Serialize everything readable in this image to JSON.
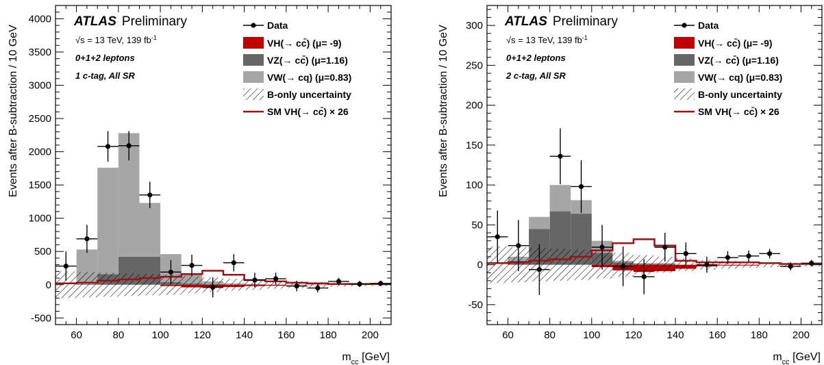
{
  "colors": {
    "vh_ccbar": "#c00000",
    "vz_ccbar": "#666666",
    "vw_cq": "#a6a6a6",
    "sm_line": "#a01010",
    "data": "#000000"
  },
  "legend": {
    "data": "Data",
    "vh": "VH(→ cc̄) (μ= -9)",
    "vz": "VZ(→ cc̄) (μ=1.16)",
    "vw": "VW(→ cq) (μ=0.83)",
    "unc": "B-only uncertainty",
    "sm": "SM VH(→ cc̄) × 26"
  },
  "labels": {
    "atlas": "ATLAS",
    "preliminary": "Preliminary",
    "energy": "√s = 13 TeV, 139 fb",
    "energy_sup": "-1",
    "leptons": "0+1+2 leptons"
  },
  "chart_data": [
    {
      "type": "bar",
      "category_label": "1 c-tag, All SR",
      "xlabel": "m",
      "xlabel_sub": "cc",
      "xlabel_unit": " [GeV]",
      "ylabel": "Events after B-subtraction / 10 GeV",
      "xlim": [
        50,
        210
      ],
      "ylim": [
        -600,
        4200
      ],
      "xticks": [
        60,
        80,
        100,
        120,
        140,
        160,
        180,
        200
      ],
      "yticks": [
        -500,
        0,
        500,
        1000,
        1500,
        2000,
        2500,
        3000,
        3500,
        4000
      ],
      "bin_edges": [
        50,
        60,
        70,
        80,
        90,
        100,
        110,
        120,
        130,
        140,
        150,
        160,
        170,
        180,
        190,
        200,
        210
      ],
      "series": [
        {
          "name": "VH(→ cc̄) (μ= -9)",
          "kind": "stack",
          "values": [
            0,
            0,
            0,
            0,
            0,
            -20,
            -40,
            -40,
            -35,
            -20,
            -15,
            -5,
            -5,
            0,
            0,
            0
          ]
        },
        {
          "name": "VZ(→ cc̄) (μ=1.16)",
          "kind": "stack",
          "values": [
            0,
            10,
            160,
            420,
            420,
            40,
            20,
            10,
            5,
            5,
            0,
            0,
            0,
            0,
            0,
            0
          ]
        },
        {
          "name": "VW(→ cq) (μ=0.83)",
          "kind": "stack",
          "values": [
            0,
            520,
            1600,
            1860,
            810,
            420,
            150,
            40,
            15,
            5,
            0,
            0,
            0,
            0,
            0,
            0
          ]
        },
        {
          "name": "SM VH(→ cc̄) × 26",
          "kind": "step",
          "values": [
            20,
            30,
            60,
            80,
            100,
            120,
            160,
            210,
            150,
            70,
            50,
            30,
            20,
            10,
            10,
            10
          ]
        }
      ],
      "uncertainty": [
        200,
        190,
        180,
        170,
        160,
        150,
        130,
        110,
        90,
        80,
        60,
        50,
        40,
        30,
        25,
        20
      ],
      "data": {
        "x": [
          55,
          65,
          75,
          85,
          95,
          105,
          115,
          125,
          135,
          145,
          155,
          165,
          175,
          185,
          195,
          205
        ],
        "y": [
          280,
          690,
          2080,
          2090,
          1350,
          190,
          290,
          -40,
          330,
          70,
          90,
          -20,
          -50,
          50,
          10,
          20
        ],
        "err": [
          220,
          210,
          230,
          220,
          200,
          180,
          160,
          150,
          130,
          110,
          90,
          80,
          65,
          55,
          45,
          40
        ]
      }
    },
    {
      "type": "bar",
      "category_label": "2 c-tag, All SR",
      "xlabel": "m",
      "xlabel_sub": "cc",
      "xlabel_unit": " [GeV]",
      "ylabel": "Events after B-subtraction / 10 GeV",
      "xlim": [
        50,
        210
      ],
      "ylim": [
        -75,
        325
      ],
      "xticks": [
        60,
        80,
        100,
        120,
        140,
        160,
        180,
        200
      ],
      "yticks": [
        -50,
        0,
        50,
        100,
        150,
        200,
        250,
        300
      ],
      "bin_edges": [
        50,
        60,
        70,
        80,
        90,
        100,
        110,
        120,
        130,
        140,
        150,
        160,
        170,
        180,
        190,
        200,
        210
      ],
      "series": [
        {
          "name": "VH(→ cc̄) (μ= -9)",
          "kind": "stack",
          "values": [
            0,
            0,
            0,
            0,
            0,
            -3,
            -7,
            -9,
            -8,
            -5,
            -2,
            -1,
            -1,
            0,
            0,
            0
          ]
        },
        {
          "name": "VZ(→ cc̄) (μ=1.16)",
          "kind": "stack",
          "values": [
            0,
            5,
            45,
            67,
            64,
            15,
            3,
            1,
            1,
            0,
            0,
            0,
            0,
            0,
            0,
            0
          ]
        },
        {
          "name": "VW(→ cq) (μ=0.83)",
          "kind": "stack",
          "values": [
            0,
            5,
            15,
            33,
            17,
            15,
            2,
            1,
            1,
            0,
            0,
            0,
            0,
            0,
            0,
            0
          ]
        },
        {
          "name": "SM VH(→ cc̄) × 26",
          "kind": "step",
          "values": [
            2,
            3,
            5,
            7,
            10,
            18,
            27,
            32,
            24,
            5,
            3,
            3,
            3,
            2,
            1,
            1
          ]
        }
      ],
      "uncertainty": [
        23,
        22,
        21,
        20,
        19,
        17,
        15,
        12,
        10,
        8,
        6,
        5,
        4,
        3,
        3,
        2
      ],
      "data": {
        "x": [
          55,
          65,
          75,
          85,
          95,
          105,
          115,
          125,
          135,
          145,
          155,
          165,
          175,
          185,
          195,
          205
        ],
        "y": [
          35,
          24,
          -6,
          136,
          98,
          22,
          -2,
          -15,
          22,
          14,
          0,
          9,
          11,
          14,
          -2,
          2
        ],
        "err": [
          33,
          32,
          32,
          35,
          33,
          28,
          25,
          22,
          18,
          14,
          10,
          8,
          7,
          6,
          5,
          4
        ]
      }
    }
  ]
}
